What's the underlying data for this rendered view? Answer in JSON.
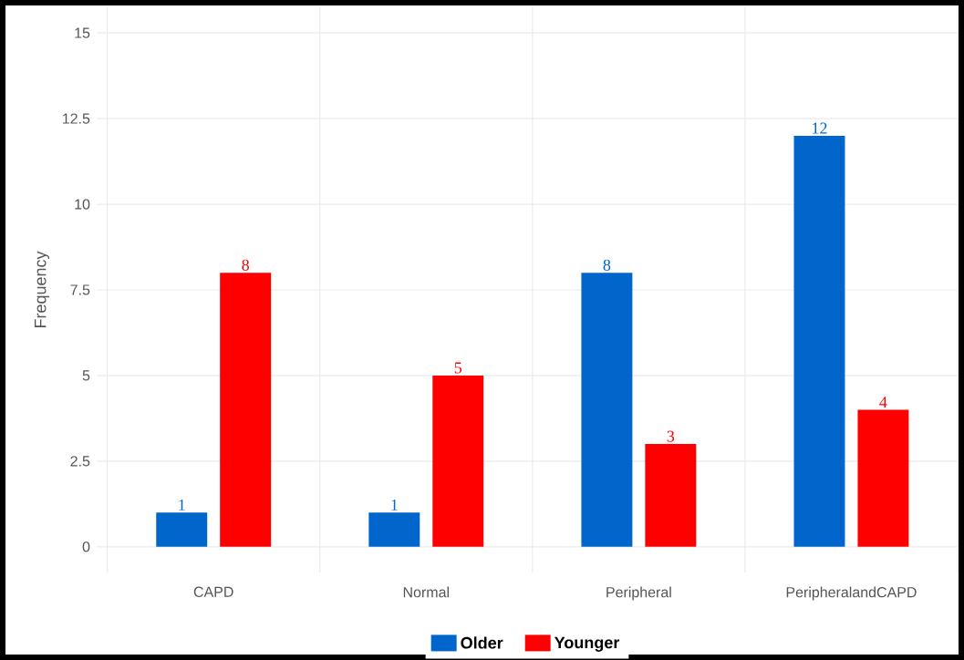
{
  "chart_data": {
    "type": "bar",
    "ylabel": "Frequency",
    "categories": [
      "CAPD",
      "Normal",
      "Peripheral",
      "PeripheralandCAPD"
    ],
    "series": [
      {
        "name": "Older",
        "color": "#0066cc",
        "values": [
          1,
          1,
          8,
          12
        ]
      },
      {
        "name": "Younger",
        "color": "#ff0000",
        "values": [
          8,
          5,
          3,
          4
        ]
      }
    ],
    "ylim": [
      -0.75,
      15.75
    ],
    "yticks": [
      0,
      2.5,
      5,
      7.5,
      10,
      12.5,
      15
    ],
    "grid": true,
    "legend": "bottom",
    "data_labels": true
  }
}
